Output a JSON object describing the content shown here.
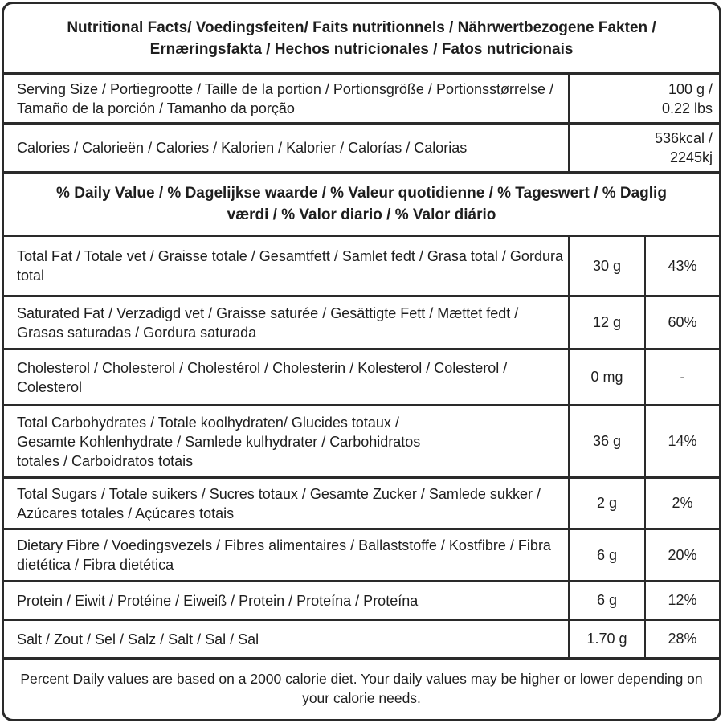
{
  "title": "Nutritional Facts/ Voedingsfeiten/ Faits nutritionnels / Nährwertbezogene Fakten / Ernæringsfakta / Hechos nutricionales / Fatos nutricionais",
  "serving": {
    "label": "Serving Size / Portiegrootte / Taille de la portion / Portionsgröße / Portionsstørrelse / Tamaño de la porción / Tamanho da porção",
    "value_line1": "100 g /",
    "value_line2": "0.22 lbs"
  },
  "calories": {
    "label": "Calories / Calorieën / Calories / Kalorien / Kalorier / Calorías / Calorias",
    "value_line1": "536kcal /",
    "value_line2": "2245kj"
  },
  "daily_value_header": "% Daily Value / % Dagelijkse waarde / % Valeur quotidienne / % Tageswert / % Daglig værdi / % Valor diario / % Valor diário",
  "nutrients": [
    {
      "label": "Total Fat / Totale vet / Graisse totale / Gesamtfett / Samlet fedt / Grasa total / Gordura total",
      "amount": "30 g",
      "percent": "43%"
    },
    {
      "label": "Saturated Fat / Verzadigd vet / Graisse saturée / Gesättigte Fett / Mættet fedt / Grasas saturadas / Gordura saturada",
      "amount": "12 g",
      "percent": "60%"
    },
    {
      "label": "Cholesterol / Cholesterol  / Cholestérol / Cholesterin /  Kolesterol / Colesterol / Colesterol",
      "amount": "0 mg",
      "percent": "-"
    },
    {
      "label": "Total Carbohydrates / Totale koolhydraten/ Glucides totaux / Gesamte Kohlenhydrate / Samlede kulhydrater / Carbohidratos totales / Carboidratos totais",
      "amount": "36 g",
      "percent": "14%"
    },
    {
      "label": "Total Sugars / Totale suikers / Sucres totaux / Gesamte Zucker / Samlede sukker / Azúcares totales / Açúcares totais",
      "amount": "2 g",
      "percent": "2%"
    },
    {
      "label": "Dietary Fibre / Voedingsvezels / Fibres alimentaires / Ballaststoffe / Kostfibre / Fibra dietética / Fibra dietética",
      "amount": "6 g",
      "percent": "20%"
    },
    {
      "label": "Protein / Eiwit / Protéine / Eiweiß / Protein / Proteína / Proteína",
      "amount": "6 g",
      "percent": "12%"
    },
    {
      "label": "Salt / Zout / Sel / Salz / Salt / Sal / Sal",
      "amount": "1.70 g",
      "percent": "28%"
    }
  ],
  "footnote": "Percent Daily values are based on a 2000 calorie diet. Your daily values may be higher or lower depending on your calorie needs."
}
